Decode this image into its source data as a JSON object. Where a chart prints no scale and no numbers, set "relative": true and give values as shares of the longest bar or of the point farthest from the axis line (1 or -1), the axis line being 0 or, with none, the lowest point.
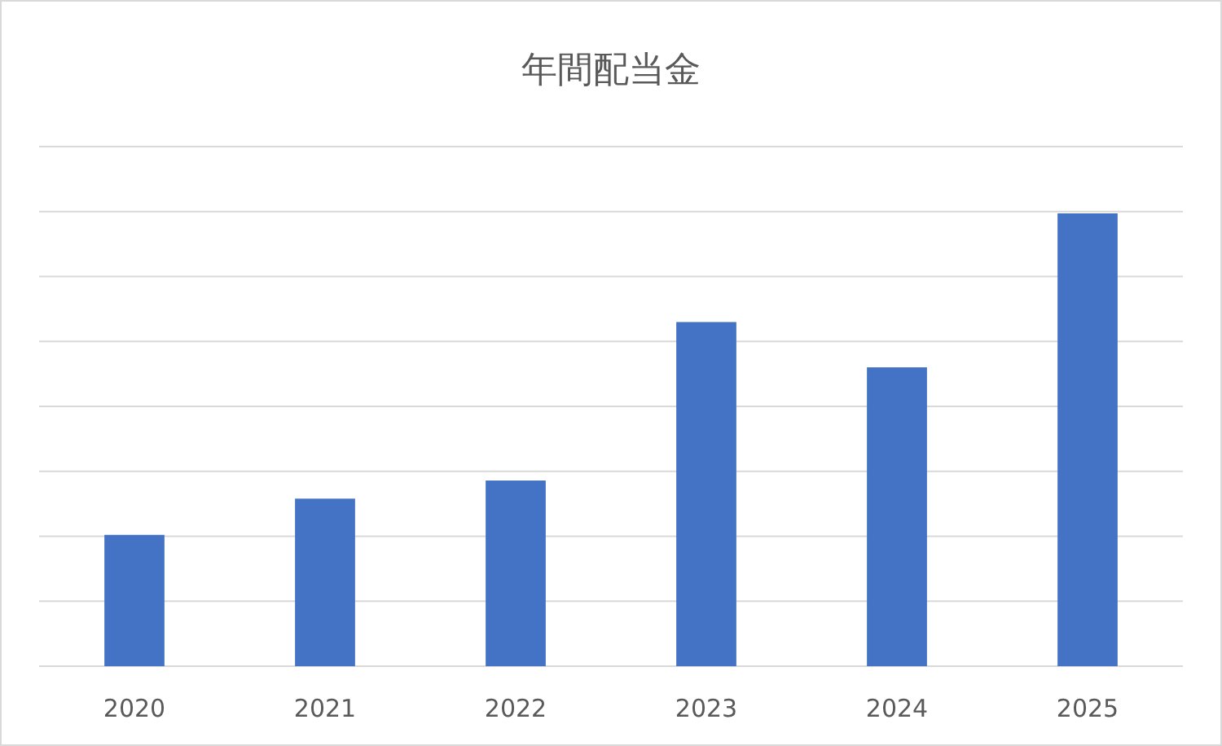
{
  "chart_data": {
    "type": "bar",
    "title": "年間配当金",
    "categories": [
      "2020",
      "2021",
      "2022",
      "2023",
      "2024",
      "2025"
    ],
    "values": [
      0.29,
      0.37,
      0.41,
      0.76,
      0.66,
      1
    ],
    "color": "#4472c4",
    "relative": true,
    "grid": "y"
  }
}
